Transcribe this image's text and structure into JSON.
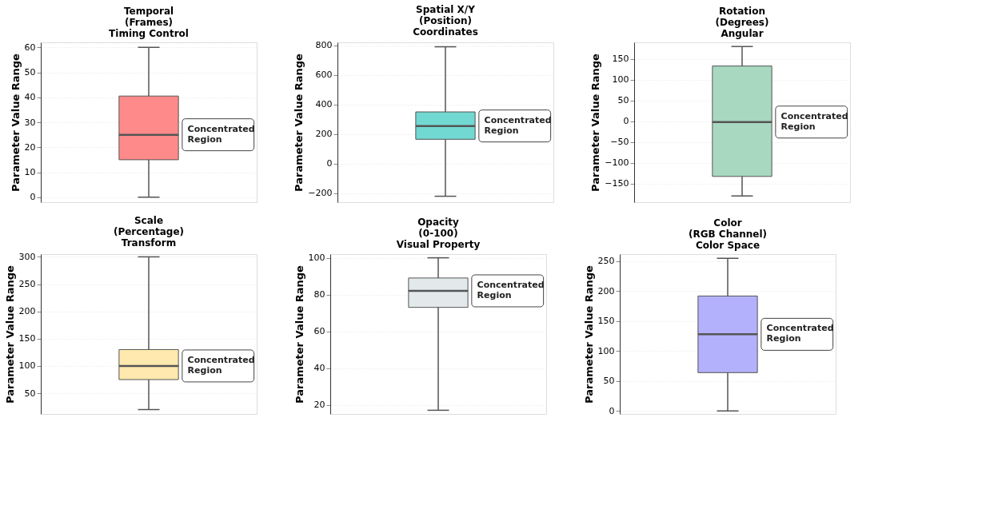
{
  "chart_data": [
    {
      "type": "box",
      "title": "Temporal\n(Frames)\nTiming Control",
      "ylabel": "Parameter Value Range",
      "categories": [
        null
      ],
      "ylim": [
        -2,
        62
      ],
      "yticks": [
        0,
        10,
        20,
        30,
        40,
        50,
        60
      ],
      "grid": "y",
      "colors": [
        "#ff8a8a"
      ],
      "boxes": [
        {
          "low": 0,
          "q1": 15,
          "median": 25,
          "q3": 40.5,
          "high": 60
        }
      ],
      "annotations": [
        "Concentrated Region"
      ]
    },
    {
      "type": "box",
      "title": "Spatial X/Y\n(Position)\nCoordinates",
      "ylabel": "Parameter Value Range",
      "categories": [
        null
      ],
      "ylim": [
        -260,
        820
      ],
      "yticks": [
        -200,
        0,
        200,
        400,
        600,
        800
      ],
      "grid": "y",
      "colors": [
        "#72d8d2"
      ],
      "boxes": [
        {
          "low": -220,
          "q1": 165,
          "median": 255,
          "q3": 350,
          "high": 790
        }
      ],
      "annotations": [
        "Concentrated Region"
      ]
    },
    {
      "type": "box",
      "title": "Rotation\n(Degrees)\nAngular",
      "ylabel": "Parameter Value Range",
      "categories": [
        null
      ],
      "ylim": [
        -195,
        190
      ],
      "yticks": [
        -150,
        -100,
        -50,
        0,
        50,
        100,
        150
      ],
      "grid": "y",
      "colors": [
        "#a8d8c0"
      ],
      "boxes": [
        {
          "low": -180,
          "q1": -133,
          "median": -2,
          "q3": 133,
          "high": 180
        }
      ],
      "annotations": [
        "Concentrated Region"
      ]
    },
    {
      "type": "box",
      "title": "Scale\n(Percentage)\nTransform",
      "ylabel": "Parameter Value Range",
      "categories": [
        null
      ],
      "ylim": [
        12,
        305
      ],
      "yticks": [
        50,
        100,
        150,
        200,
        250,
        300
      ],
      "grid": "y",
      "colors": [
        "#ffe9ae"
      ],
      "boxes": [
        {
          "low": 20,
          "q1": 75,
          "median": 100,
          "q3": 130,
          "high": 300
        }
      ],
      "annotations": [
        "Concentrated Region"
      ]
    },
    {
      "type": "box",
      "title": "Opacity\n(0-100)\nVisual Property",
      "ylabel": "Parameter Value Range",
      "categories": [
        null
      ],
      "ylim": [
        15,
        102
      ],
      "yticks": [
        20,
        40,
        60,
        80,
        100
      ],
      "grid": "y",
      "colors": [
        "#e3e8ea"
      ],
      "boxes": [
        {
          "low": 17,
          "q1": 73,
          "median": 82,
          "q3": 89,
          "high": 100
        }
      ],
      "annotations": [
        "Concentrated Region"
      ]
    },
    {
      "type": "box",
      "title": "Color\n(RGB Channel)\nColor Space",
      "ylabel": "Parameter Value Range",
      "categories": [
        null
      ],
      "ylim": [
        -5,
        262
      ],
      "yticks": [
        0,
        50,
        100,
        150,
        200,
        250
      ],
      "grid": "y",
      "colors": [
        "#b3b1fb"
      ],
      "boxes": [
        {
          "low": 0,
          "q1": 64,
          "median": 128,
          "q3": 192,
          "high": 255
        }
      ],
      "annotations": [
        "Concentrated Region"
      ]
    }
  ]
}
